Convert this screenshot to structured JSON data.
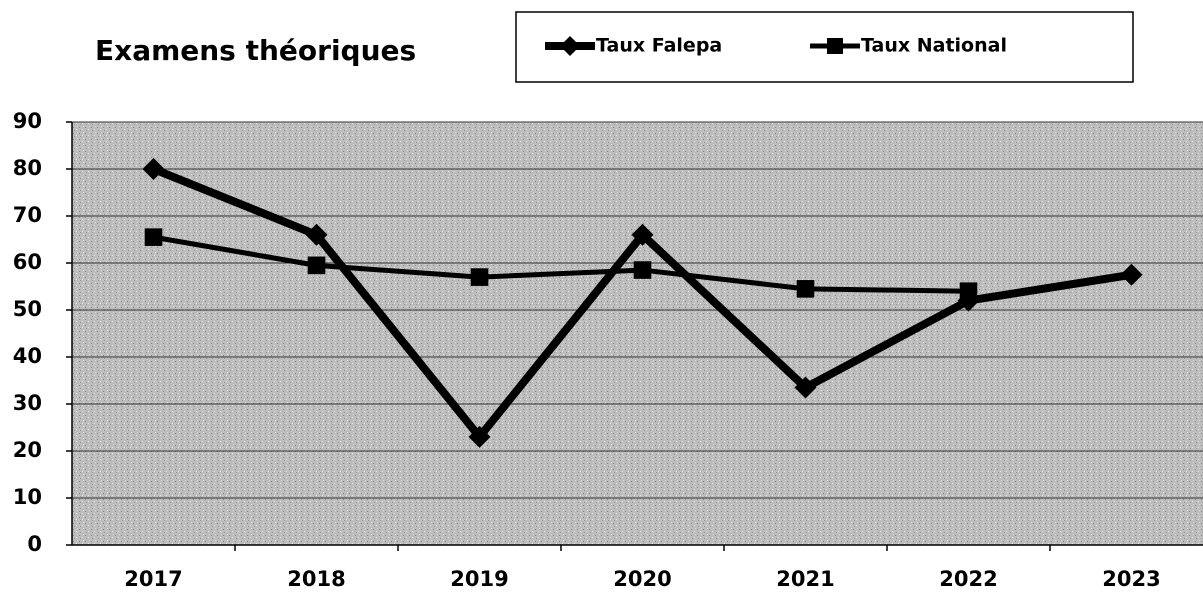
{
  "chart_data": {
    "type": "line",
    "title": "Examens théoriques",
    "categories": [
      "2017",
      "2018",
      "2019",
      "2020",
      "2021",
      "2022",
      "2023"
    ],
    "series": [
      {
        "name": "Taux Falepa",
        "color": "#000000",
        "marker": "diamond",
        "values": [
          80,
          66,
          23,
          66,
          33.5,
          52,
          57.5
        ]
      },
      {
        "name": "Taux National",
        "color": "#000000",
        "marker": "square",
        "values": [
          65.5,
          59.5,
          57,
          58.5,
          54.5,
          54,
          null
        ]
      }
    ],
    "ylim": [
      0,
      90
    ],
    "yticks": [
      0,
      10,
      20,
      30,
      40,
      50,
      60,
      70,
      80,
      90
    ],
    "grid": true
  }
}
